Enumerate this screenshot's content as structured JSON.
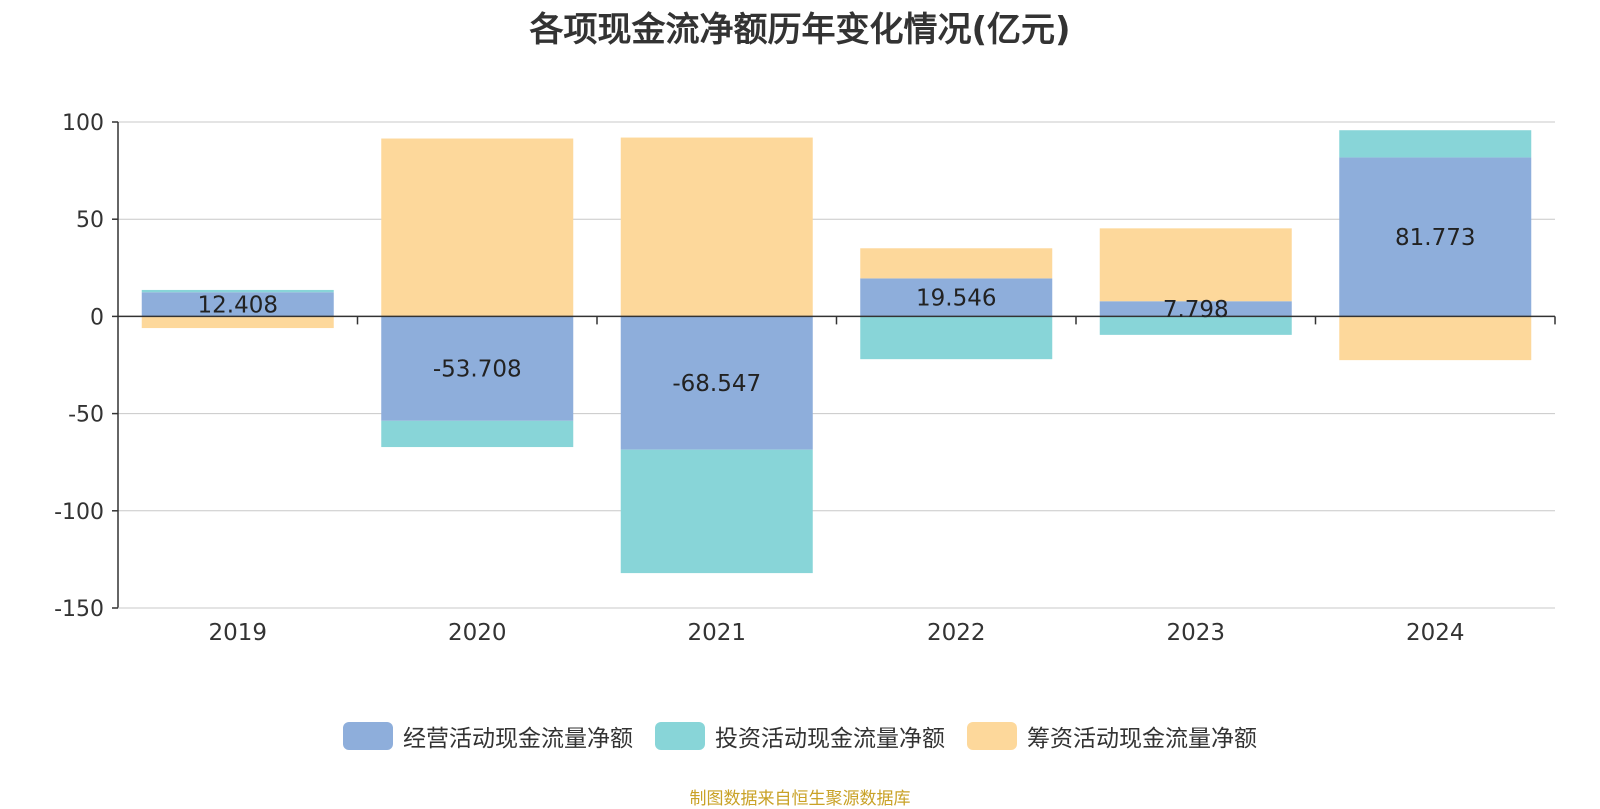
{
  "chart_data": {
    "type": "bar",
    "stacked": true,
    "title": "各项现金流净额历年变化情况(亿元)",
    "categories": [
      "2019",
      "2020",
      "2021",
      "2022",
      "2023",
      "2024"
    ],
    "series": [
      {
        "name": "经营活动现金流量净额",
        "color": "#8eaedb",
        "values": [
          12.408,
          -53.708,
          -68.547,
          19.546,
          7.798,
          81.773
        ]
      },
      {
        "name": "投资活动现金流量净额",
        "color": "#88d5d8",
        "values": [
          1.2,
          -13.5,
          -63.5,
          -22.0,
          -9.5,
          14.0
        ]
      },
      {
        "name": "筹资活动现金流量净额",
        "color": "#fdd89b",
        "values": [
          -6.0,
          91.5,
          92.0,
          15.5,
          37.5,
          -22.5
        ]
      }
    ],
    "data_labels": [
      "12.408",
      "-53.708",
      "-68.547",
      "19.546",
      "7.798",
      "81.773"
    ],
    "ylim": [
      -150,
      100
    ],
    "yticks": [
      100,
      50,
      0,
      -50,
      -100,
      -150
    ],
    "grid": true,
    "legend_position": "bottom"
  },
  "source_note": "制图数据来自恒生聚源数据库"
}
